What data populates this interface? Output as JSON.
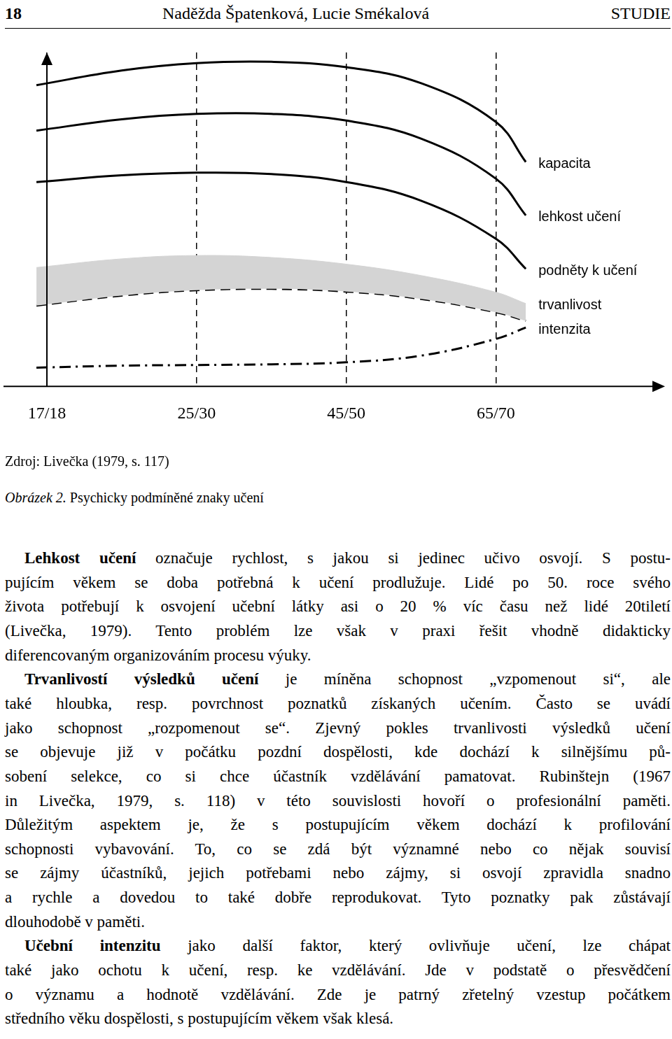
{
  "header": {
    "page": "18",
    "authors": "Naděžda Špatenková, Lucie Smékalová",
    "section": "STUDIE"
  },
  "chart_data": {
    "type": "line",
    "x": [
      -0.07,
      0.5,
      1,
      1.5,
      2,
      2.5,
      3,
      3.2
    ],
    "xlim": [
      -0.29,
      4.13
    ],
    "xticks": [
      {
        "value": 0,
        "label": "17/18"
      },
      {
        "value": 1,
        "label": "25/30"
      },
      {
        "value": 2,
        "label": "45/50"
      },
      {
        "value": 3,
        "label": "65/70"
      }
    ],
    "ylim": [
      0,
      100
    ],
    "grid": "x",
    "tick_labels": "x",
    "marker": "none",
    "series": [
      {
        "name": "kapacita",
        "color": "#000000",
        "line_style": "solid",
        "values": [
          90.2,
          94.6,
          96.8,
          97.2,
          95.6,
          90.8,
          79.2,
          67.2
        ]
      },
      {
        "name": "lehkost učení",
        "color": "#000000",
        "line_style": "solid",
        "values": [
          76.6,
          80,
          81.6,
          81.6,
          79.6,
          74.2,
          62.2,
          51.2
        ]
      },
      {
        "name": "podněty k učení",
        "color": "#000000",
        "line_style": "solid",
        "values": [
          61.2,
          63.2,
          64,
          63.6,
          61.2,
          55.6,
          44.2,
          35.2
        ]
      },
      {
        "name": "trvanlivost",
        "color": "#d4d4d4",
        "line_style": "dashed",
        "values": [
          35.6,
          38.2,
          39.2,
          38.6,
          36.6,
          33.2,
          28.2,
          24.8
        ],
        "lower": [
          24.2,
          27.2,
          28.8,
          29.2,
          28.4,
          26.2,
          22.2,
          19.6
        ]
      },
      {
        "name": "intenzita",
        "color": "#000000",
        "line_style": "dashdot",
        "values": [
          5.6,
          6.2,
          6.4,
          6.6,
          7.2,
          9.2,
          14.2,
          17.6
        ]
      }
    ]
  },
  "source": "Zdroj: Livečka (1979, s. 117)",
  "caption": {
    "label": "Obrázek 2.",
    "text": " Psychicky podmíněné znaky učení"
  },
  "body": [
    [
      [
        {
          "bold": "Lehkost učení"
        },
        " označuje rychlost, s jakou si jedinec učivo osvojí. S postu-"
      ],
      [
        "pujícím věkem se doba potřebná k učení prodlužuje. Lidé po 50. roce svého"
      ],
      [
        "života potřebují k osvojení učební látky asi o 20 % víc času než lidé 20tiletí"
      ],
      [
        "(Livečka, 1979). Tento problém lze však v praxi řešit vhodně didakticky"
      ],
      [
        "diferencovaným organizováním procesu výuky."
      ]
    ],
    [
      [
        {
          "bold": "Trvanlivostí výsledků učení"
        },
        " je míněna schopnost „vzpomenout si“, ale"
      ],
      [
        "také hloubka, resp. povrchnost poznatků získaných učením. Často se uvádí"
      ],
      [
        "jako schopnost „rozpomenout se“. Zjevný pokles trvanlivosti výsledků učení"
      ],
      [
        "se objevuje již v počátku pozdní dospělosti, kde dochází k silnějšímu pů-"
      ],
      [
        "sobení selekce, co si chce účastník vzdělávání pamatovat. Rubinštejn (1967"
      ],
      [
        "in Livečka, 1979, s. 118) v této souvislosti hovoří o profesionální paměti."
      ],
      [
        "Důležitým aspektem je, že s postupujícím věkem dochází k profilování"
      ],
      [
        "schopnosti vybavování. To, co se zdá být významné nebo co nějak souvisí"
      ],
      [
        "se zájmy účastníků, jejich potřebami nebo zájmy, si osvojí zpravidla snadno"
      ],
      [
        "a rychle a dovedou to také dobře reprodukovat. Tyto poznatky pak zůstávají"
      ],
      [
        "dlouhodobě v paměti."
      ]
    ],
    [
      [
        {
          "bold": "Učební intenzitu"
        },
        " jako další faktor, který ovlivňuje učení, lze chápat"
      ],
      [
        "také jako ochotu k učení, resp. ke vzdělávání. Jde v podstatě o přesvědčení"
      ],
      [
        "o významu a hodnotě vzdělávání. Zde je patrný zřetelný vzestup počátkem"
      ],
      [
        "středního věku dospělosti, s postupujícím věkem však klesá."
      ]
    ]
  ]
}
